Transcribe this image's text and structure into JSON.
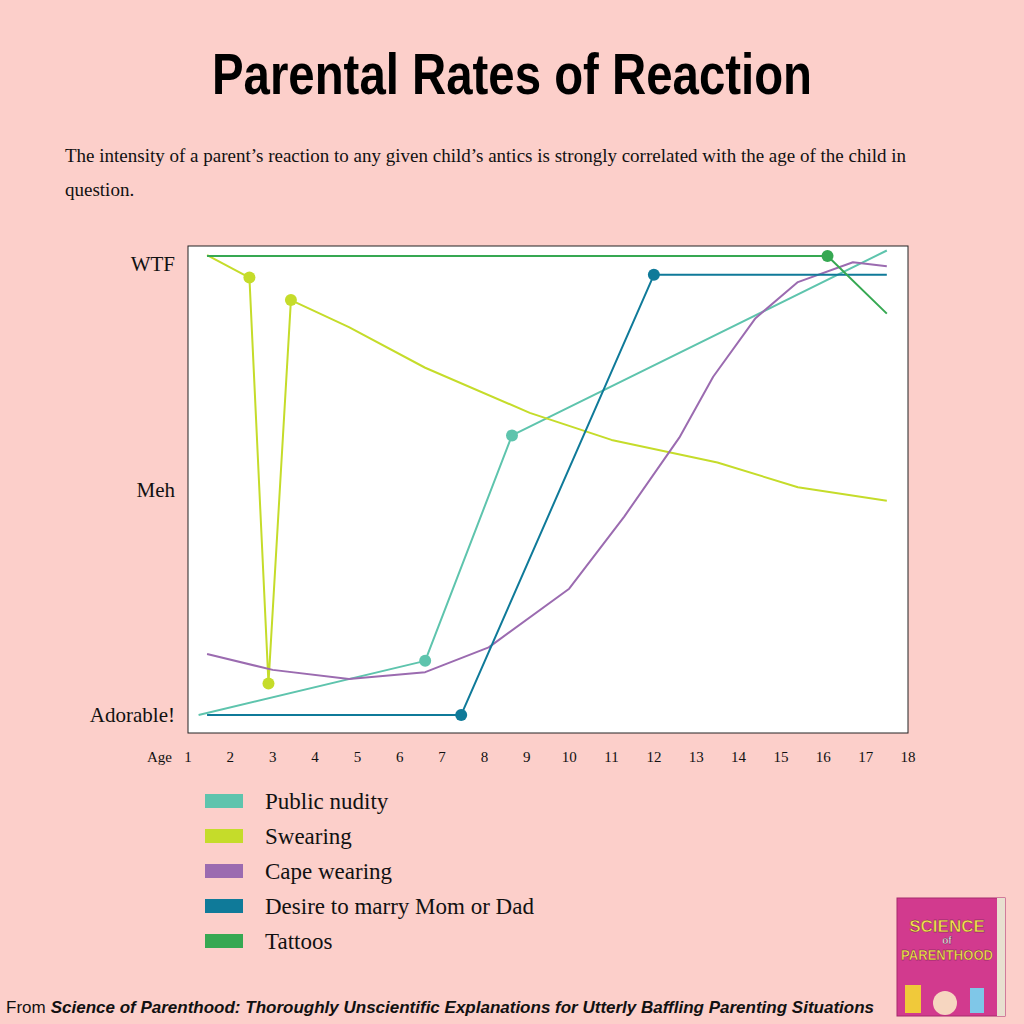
{
  "chart_data": {
    "type": "line",
    "title": "Parental Rates of Reaction",
    "subtitle": "The intensity of a parent’s reaction to any given child’s antics is strongly correlated with the age of the child in question.",
    "x_label": "Age",
    "xlim": [
      1,
      18
    ],
    "xticks": [
      1,
      2,
      3,
      4,
      5,
      6,
      7,
      8,
      9,
      10,
      11,
      12,
      13,
      14,
      15,
      16,
      17,
      18
    ],
    "ylim": [
      -4,
      104
    ],
    "yticks": [
      {
        "value": 0,
        "label": "Adorable!"
      },
      {
        "value": 50,
        "label": "Meh"
      },
      {
        "value": 100,
        "label": "WTF"
      }
    ],
    "grid": false,
    "legend": "bottom",
    "series": [
      {
        "name": "Public nudity",
        "color": "#5ec4ad",
        "marker": "circle",
        "x": [
          1.25,
          6.6,
          8.65,
          17.5
        ],
        "values": [
          0,
          12,
          62,
          103
        ]
      },
      {
        "name": "Swearing",
        "color": "#c5dc2a",
        "marker": "circle",
        "x": [
          1.45,
          2.45,
          2.9,
          3.43,
          4.8,
          6.6,
          9.07,
          11,
          13.5,
          15.4,
          17.5
        ],
        "values": [
          102,
          97,
          7,
          92,
          86,
          77,
          67,
          61,
          56,
          50.5,
          47.5
        ]
      },
      {
        "name": "Cape wearing",
        "color": "#9b6bb0",
        "marker": "none",
        "x": [
          1.45,
          3,
          4.8,
          6.6,
          8.1,
          10,
          11.3,
          12.6,
          13.4,
          14.4,
          15.4,
          16.7,
          17.5
        ],
        "values": [
          13.5,
          10,
          8,
          9.5,
          15,
          28,
          44,
          61.5,
          75,
          88,
          96,
          100.4,
          99.5
        ]
      },
      {
        "name": "Desire to marry Mom or Dad",
        "color": "#0f7a99",
        "marker": "circle",
        "x": [
          1.45,
          7.45,
          12,
          17.5
        ],
        "values": [
          0,
          0,
          97.6,
          97.6
        ]
      },
      {
        "name": "Tattoos",
        "color": "#36a852",
        "marker": "circle",
        "x": [
          1.45,
          16.1,
          17.5
        ],
        "values": [
          101.8,
          101.8,
          89
        ]
      }
    ]
  },
  "footer": {
    "prefix": "From",
    "source": "Science of Parenthood: Thoroughly Unscientific Explanations for Utterly Baffling Parenting Situations"
  },
  "book_cover": {
    "title_top": "SCIENCE",
    "title_mid": "of",
    "title_bottom": "PARENTHOOD"
  }
}
